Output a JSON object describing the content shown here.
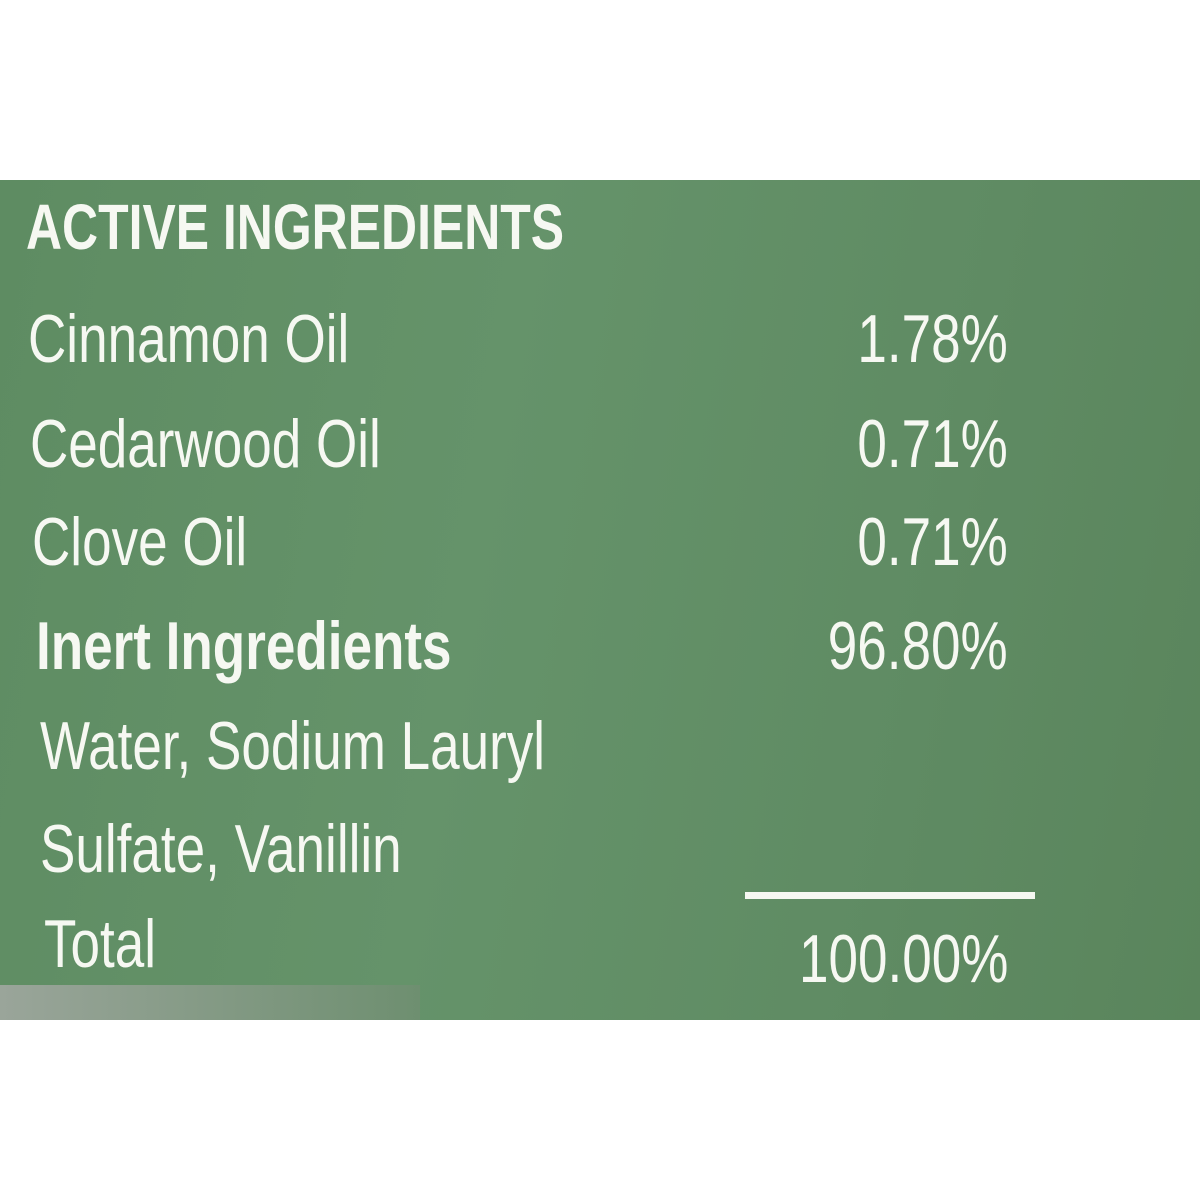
{
  "label": {
    "heading": "ACTIVE INGREDIENTS",
    "rows": [
      {
        "name": "Cinnamon Oil",
        "value": "1.78%"
      },
      {
        "name": "Cedarwood Oil",
        "value": "0.71%"
      },
      {
        "name": "Clove Oil",
        "value": "0.71%"
      }
    ],
    "inert": {
      "name": "Inert Ingredients",
      "value": "96.80%"
    },
    "inert_list_line1": "Water, Sodium Lauryl",
    "inert_list_line2": "Sulfate, Vanillin",
    "total": {
      "name": "Total",
      "value": "100.00%"
    }
  },
  "colors": {
    "label_green": "#5f8d63",
    "text": "#f6f8f2"
  }
}
